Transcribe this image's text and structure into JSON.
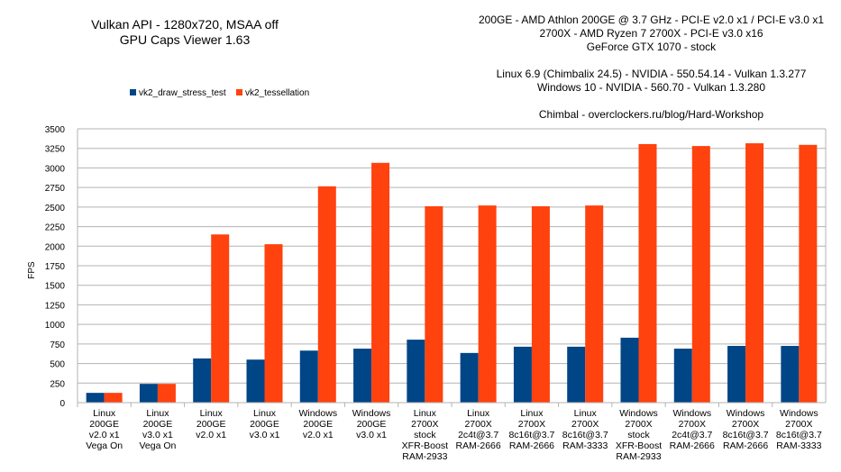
{
  "chart_data": {
    "type": "bar",
    "title": "Vulkan API - 1280x720, MSAA off",
    "subtitle": "GPU Caps Viewer 1.63",
    "info": [
      "200GE - AMD Athlon 200GE @ 3.7 GHz - PCI-E v2.0 x1 / PCI-E v3.0 x1",
      "2700X - AMD Ryzen 7 2700X - PCI-E v3.0 x16",
      "GeForce GTX 1070 - stock",
      "",
      "Linux 6.9 (Chimbalix 24.5) - NVIDIA - 550.54.14 - Vulkan 1.3.277",
      "Windows 10 - NVIDIA - 560.70 - Vulkan 1.3.280",
      "",
      "Chimbal - overclockers.ru/blog/Hard-Workshop"
    ],
    "ylabel": "FPS",
    "xlabel": "",
    "ylim": [
      0,
      3500
    ],
    "yticks": [
      0,
      250,
      500,
      750,
      1000,
      1250,
      1500,
      1750,
      2000,
      2250,
      2500,
      2750,
      3000,
      3250,
      3500
    ],
    "grid": true,
    "legend_position": "top-left",
    "categories": [
      [
        "Linux",
        "200GE",
        "v2.0 x1",
        "Vega On"
      ],
      [
        "Linux",
        "200GE",
        "v3.0 x1",
        "Vega On"
      ],
      [
        "Linux",
        "200GE",
        "v2.0 x1"
      ],
      [
        "Linux",
        "200GE",
        "v3.0 x1"
      ],
      [
        "Windows",
        "200GE",
        "v2.0 x1"
      ],
      [
        "Windows",
        "200GE",
        "v3.0 x1"
      ],
      [
        "Linux",
        "2700X",
        "stock",
        "XFR-Boost",
        "RAM-2933"
      ],
      [
        "Linux",
        "2700X",
        "2c4t@3.7",
        "RAM-2666"
      ],
      [
        "Linux",
        "2700X",
        "8c16t@3.7",
        "RAM-2666"
      ],
      [
        "Linux",
        "2700X",
        "8c16t@3.7",
        "RAM-3333"
      ],
      [
        "Windows",
        "2700X",
        "stock",
        "XFR-Boost",
        "RAM-2933"
      ],
      [
        "Windows",
        "2700X",
        "2c4t@3.7",
        "RAM-2666"
      ],
      [
        "Windows",
        "2700X",
        "8c16t@3.7",
        "RAM-2666"
      ],
      [
        "Windows",
        "2700X",
        "8c16t@3.7",
        "RAM-3333"
      ]
    ],
    "series": [
      {
        "name": "vk2_draw_stress_test",
        "color": "#004586",
        "values": [
          125,
          240,
          565,
          550,
          665,
          690,
          805,
          635,
          715,
          715,
          830,
          690,
          725,
          725
        ]
      },
      {
        "name": "vk2_tessellation",
        "color": "#ff420e",
        "values": [
          125,
          240,
          2150,
          2025,
          2765,
          3065,
          2510,
          2520,
          2510,
          2520,
          3305,
          3280,
          3315,
          3295
        ]
      }
    ]
  }
}
